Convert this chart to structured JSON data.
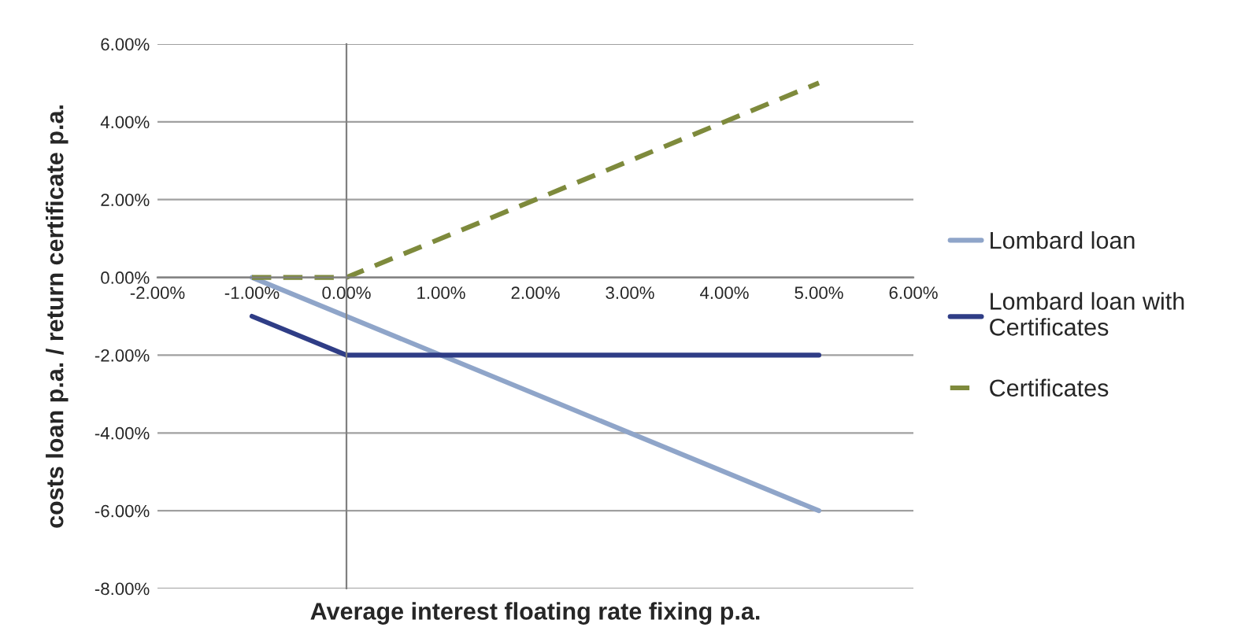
{
  "chart_data": {
    "type": "line",
    "xlabel": "Average interest floating rate fixing p.a.",
    "ylabel": "costs loan p.a. / return certificate p.a.",
    "xlim": [
      -2,
      6
    ],
    "ylim": [
      -8,
      6
    ],
    "xticks": [
      {
        "value": -2,
        "label": "-2.00%"
      },
      {
        "value": -1,
        "label": "-1.00%"
      },
      {
        "value": 0,
        "label": "0.00%"
      },
      {
        "value": 1,
        "label": "1.00%"
      },
      {
        "value": 2,
        "label": "2.00%"
      },
      {
        "value": 3,
        "label": "3.00%"
      },
      {
        "value": 4,
        "label": "4.00%"
      },
      {
        "value": 5,
        "label": "5.00%"
      },
      {
        "value": 6,
        "label": "6.00%"
      }
    ],
    "yticks": [
      {
        "value": -8,
        "label": "-8.00%"
      },
      {
        "value": -6,
        "label": "-6.00%"
      },
      {
        "value": -4,
        "label": "-4.00%"
      },
      {
        "value": -2,
        "label": "-2.00%"
      },
      {
        "value": 0,
        "label": "0.00%"
      },
      {
        "value": 2,
        "label": "2.00%"
      },
      {
        "value": 4,
        "label": "4.00%"
      },
      {
        "value": 6,
        "label": "6.00%"
      }
    ],
    "grid": "y",
    "legend": "right",
    "marker": "none",
    "series": [
      {
        "name": "Lombard loan",
        "color": "#8fa5c9",
        "line_style": "solid",
        "x": [
          -1,
          5
        ],
        "values": [
          0,
          -6
        ]
      },
      {
        "name": "Lombard loan with\nCertificates",
        "color": "#2f3d86",
        "line_style": "solid",
        "x": [
          -1,
          0,
          5
        ],
        "values": [
          -1,
          -2,
          -2
        ]
      },
      {
        "name": "Certificates",
        "color": "#7e8a3c",
        "line_style": "dashed",
        "x": [
          -1,
          0,
          5
        ],
        "values": [
          0,
          0,
          5
        ]
      }
    ]
  }
}
